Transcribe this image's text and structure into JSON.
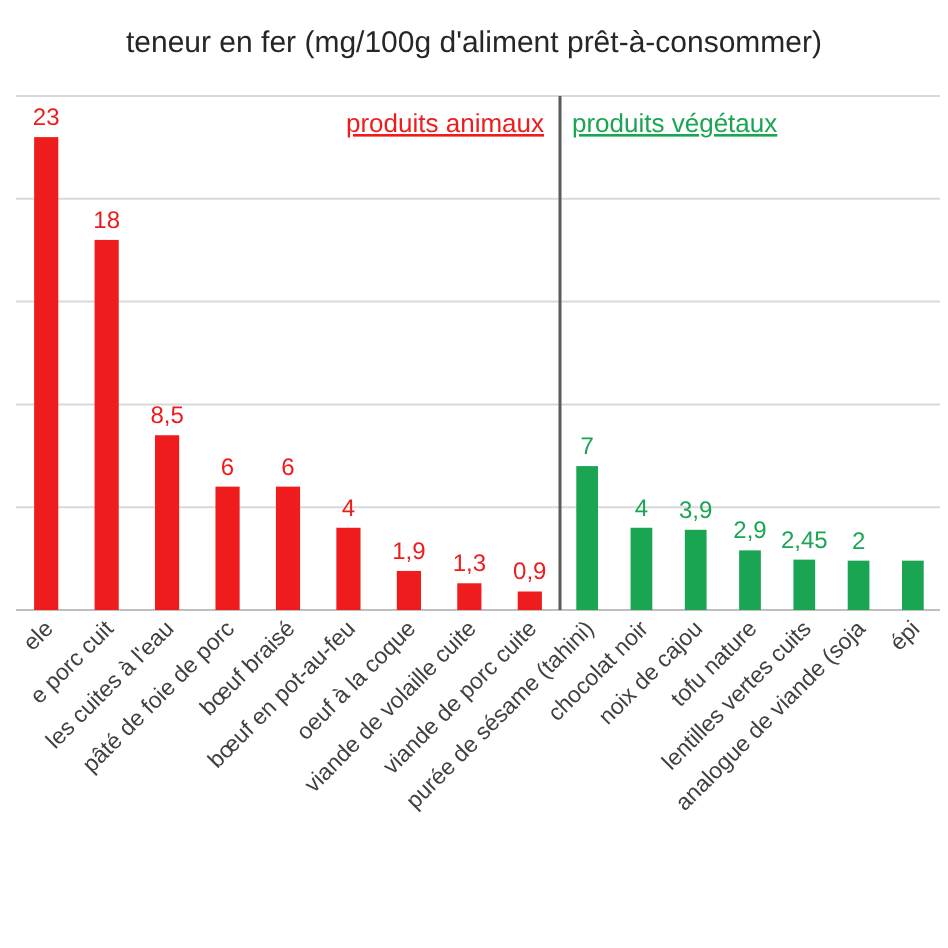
{
  "chart_data": [
    {
      "type": "bar",
      "title": "teneur en fer (mg/100g d'aliment prêt-à-consommer)",
      "annotations": [
        "produits animaux"
      ],
      "categories": [
        "ele",
        "e porc cuit",
        "les cuites à l'eau",
        "pâté de foie de porc",
        "bœuf braisé",
        "bœuf en pot-au-feu",
        "oeuf à la coque",
        "viande de volaille cuite",
        "viande de porc cuite"
      ],
      "series": [
        {
          "color": "#ee1c1c",
          "values": [
            23,
            18,
            8.5,
            6,
            6,
            4,
            1.9,
            1.3,
            0.9
          ],
          "value_labels": [
            "23",
            "18",
            "8,5",
            "6",
            "6",
            "4",
            "1,9",
            "1,3",
            "0,9"
          ]
        }
      ],
      "ylim": [
        0,
        25
      ],
      "yticks": [
        {
          "value": 0,
          "label": null
        },
        {
          "value": 5,
          "label": null
        },
        {
          "value": 10,
          "label": null
        },
        {
          "value": 15,
          "label": null
        },
        {
          "value": 20,
          "label": null
        },
        {
          "value": 25,
          "label": null
        }
      ],
      "grid": "y",
      "tick_labels": "x"
    },
    {
      "type": "bar",
      "annotations": [
        "produits végétaux"
      ],
      "categories": [
        "purée de sésame (tahini)",
        "chocolat noir",
        "noix de cajou",
        "tofu nature",
        "lentilles vertes cuits",
        "analogue de viande (soja",
        "épi"
      ],
      "series": [
        {
          "color": "#1aa552",
          "values": [
            7,
            4,
            3.9,
            2.9,
            2.45,
            2.4,
            2.4
          ],
          "value_labels": [
            "7",
            "4",
            "3,9",
            "2,9",
            "2,45",
            "2",
            null
          ]
        }
      ],
      "ylim": [
        0,
        25
      ],
      "yticks": [
        {
          "value": 0,
          "label": null
        },
        {
          "value": 5,
          "label": null
        },
        {
          "value": 10,
          "label": null
        },
        {
          "value": 15,
          "label": null
        },
        {
          "value": 20,
          "label": null
        },
        {
          "value": 25,
          "label": null
        }
      ],
      "grid": "y",
      "tick_labels": "x"
    }
  ]
}
